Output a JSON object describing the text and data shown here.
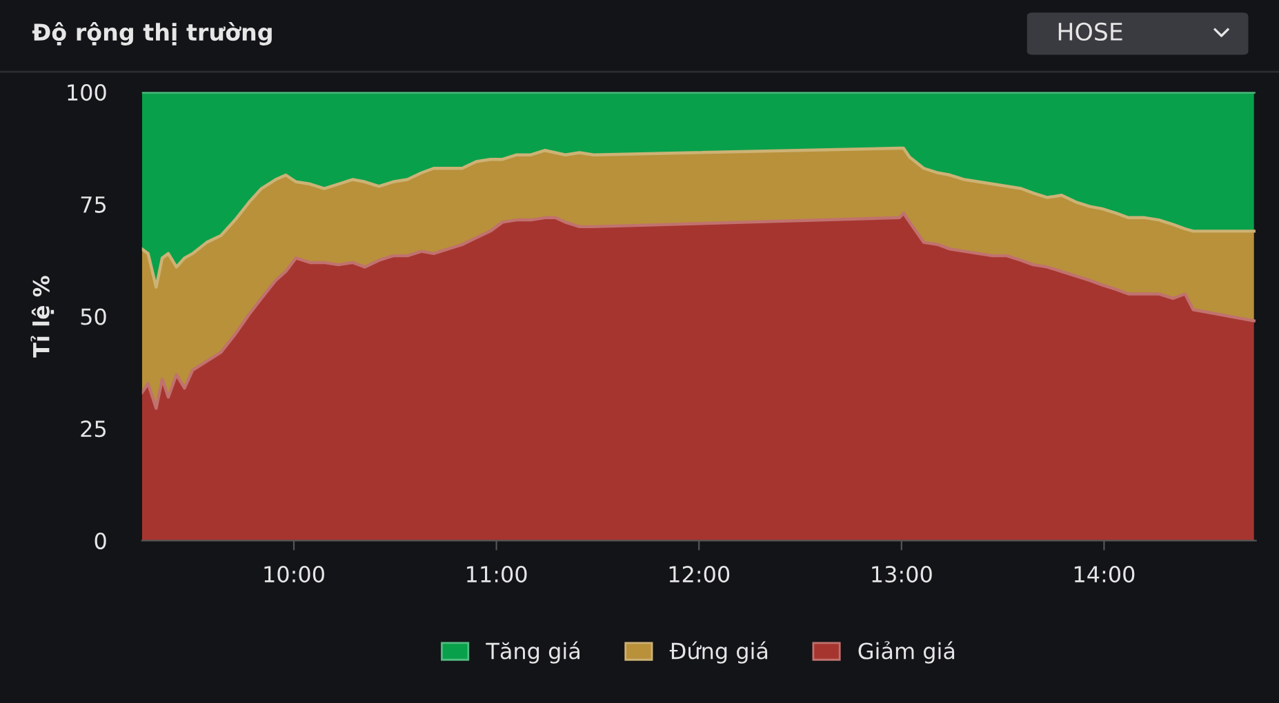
{
  "chart_data": {
    "type": "area",
    "stacked": true,
    "title": "Độ rộng thị trường",
    "ylabel": "Tỉ lệ %",
    "annotations": [
      "HOSE"
    ],
    "x": [
      9.25,
      9.28,
      9.32,
      9.35,
      9.38,
      9.42,
      9.46,
      9.5,
      9.57,
      9.64,
      9.71,
      9.78,
      9.84,
      9.91,
      9.96,
      10.01,
      10.08,
      10.15,
      10.22,
      10.29,
      10.35,
      10.42,
      10.49,
      10.56,
      10.63,
      10.69,
      10.76,
      10.83,
      10.9,
      10.97,
      11.03,
      11.1,
      11.17,
      11.24,
      11.29,
      11.34,
      11.41,
      11.48,
      12.99,
      13.01,
      13.04,
      13.11,
      13.18,
      13.24,
      13.31,
      13.38,
      13.45,
      13.52,
      13.59,
      13.65,
      13.72,
      13.79,
      13.86,
      13.93,
      13.99,
      14.06,
      14.12,
      14.2,
      14.27,
      14.34,
      14.4,
      14.44,
      14.74
    ],
    "series": [
      {
        "name": "Giảm giá",
        "color": "#a63530",
        "values": [
          33,
          35,
          29.5,
          36,
          32,
          37,
          34,
          38,
          40,
          42,
          46,
          50.5,
          54,
          58,
          60,
          63,
          62,
          62,
          61.5,
          62,
          61,
          62.5,
          63.5,
          63.5,
          64.5,
          64,
          65,
          66,
          67.5,
          69,
          71,
          71.5,
          71.5,
          72,
          72,
          71,
          70,
          70,
          72,
          73,
          71,
          66.5,
          66,
          65,
          64.5,
          64,
          63.5,
          63.5,
          62.5,
          61.5,
          61,
          60,
          59,
          58,
          57,
          56,
          55,
          55,
          55,
          54,
          55,
          51.5,
          49
        ]
      },
      {
        "name": "Đứng giá",
        "color": "#b8913a",
        "values": [
          32,
          29,
          27,
          27,
          32,
          24,
          29,
          26,
          26.5,
          26,
          25.5,
          25,
          24.5,
          22.5,
          21.5,
          17,
          17.5,
          16.5,
          18,
          18.5,
          19,
          16.5,
          16.5,
          17,
          17.5,
          19,
          18,
          17,
          17,
          16,
          14,
          14.5,
          14.5,
          15,
          14.5,
          15,
          16.5,
          16,
          15.5,
          14.5,
          14.5,
          16.5,
          16,
          16.5,
          16,
          16,
          16,
          15.5,
          16,
          16,
          15.5,
          17,
          16.5,
          16.5,
          17,
          17,
          17,
          17,
          16.5,
          16.5,
          14.5,
          17.5,
          20
        ]
      },
      {
        "name": "Tăng giá",
        "color": "#09a04b",
        "values": [
          35,
          36,
          43.5,
          37,
          36,
          39,
          37,
          36,
          33.5,
          32,
          28.5,
          24.5,
          21.5,
          19.5,
          18.5,
          20,
          20.5,
          21.5,
          20.5,
          19.5,
          20,
          21,
          20,
          19.5,
          18,
          17,
          17,
          17,
          15.5,
          15,
          15,
          14,
          14,
          13,
          13.5,
          14,
          13.5,
          14,
          12.5,
          12.5,
          14.5,
          17,
          18,
          18.5,
          19.5,
          20,
          20.5,
          21,
          21.5,
          22.5,
          23.5,
          23,
          24.5,
          25.5,
          26,
          27,
          28,
          28,
          28.5,
          29.5,
          30.5,
          31,
          31
        ]
      }
    ],
    "xlim": [
      9.25,
      14.75
    ],
    "ylim": [
      0,
      100
    ],
    "xticks": [
      {
        "value": 10,
        "label": "10:00"
      },
      {
        "value": 11,
        "label": "11:00"
      },
      {
        "value": 12,
        "label": "12:00"
      },
      {
        "value": 13,
        "label": "13:00"
      },
      {
        "value": 14,
        "label": "14:00"
      }
    ],
    "yticks": [
      0,
      25,
      50,
      75,
      100
    ],
    "legend": "bottom"
  }
}
